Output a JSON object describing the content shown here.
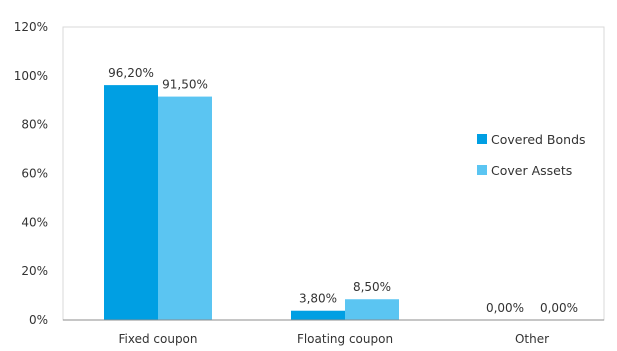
{
  "chart_data": {
    "type": "bar",
    "categories": [
      "Fixed coupon",
      "Floating coupon",
      "Other"
    ],
    "series": [
      {
        "name": "Covered Bonds",
        "values": [
          96.2,
          3.8,
          0.0
        ],
        "labels": [
          "96,20%",
          "3,80%",
          "0,00%"
        ],
        "color": "#009fe3"
      },
      {
        "name": "Cover Assets",
        "values": [
          91.5,
          8.5,
          0.0
        ],
        "labels": [
          "91,50%",
          "8,50%",
          "0,00%"
        ],
        "color": "#5bc5f2"
      }
    ],
    "ylim": [
      0,
      120
    ],
    "yticks": [
      {
        "value": 0,
        "label": "0%"
      },
      {
        "value": 20,
        "label": "20%"
      },
      {
        "value": 40,
        "label": "40%"
      },
      {
        "value": 60,
        "label": "60%"
      },
      {
        "value": 80,
        "label": "80%"
      },
      {
        "value": 100,
        "label": "100%"
      },
      {
        "value": 120,
        "label": "120%"
      }
    ],
    "grid": false,
    "legend_position": "right",
    "frame_color": "#d9d9d9",
    "axis_color": "#8c8c8c"
  }
}
